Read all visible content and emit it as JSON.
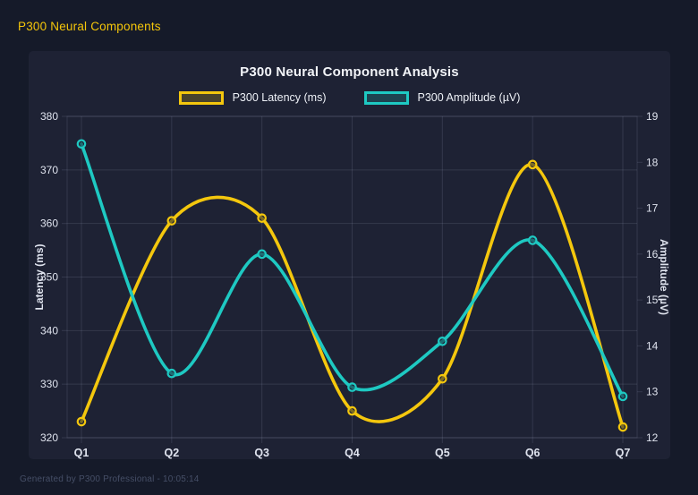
{
  "page": {
    "header_title": "P300 Neural Components",
    "footer_text": "Generated by P300 Professional - 10:05:14"
  },
  "colors": {
    "page_bg": "#151a29",
    "panel_bg": "#1e2234",
    "header_text": "#f5c60a",
    "title_text": "#f2f4f8",
    "tick_text": "#dfe3ee",
    "grid": "rgba(165,175,205,0.16)",
    "footer_text": "#454e66",
    "latency_series": "#f4c70d",
    "amplitude_series": "#1ec9c2"
  },
  "chart_data": {
    "type": "line",
    "title": "P300 Neural Component Analysis",
    "smooth": true,
    "grid": true,
    "legend_position": "top",
    "categories": [
      "Q1",
      "Q2",
      "Q3",
      "Q4",
      "Q5",
      "Q6",
      "Q7"
    ],
    "series": [
      {
        "name": "P300 Latency (ms)",
        "axis": "left",
        "color": "#f4c70d",
        "values": [
          323,
          360.5,
          361,
          325,
          331,
          371,
          322
        ]
      },
      {
        "name": "P300 Amplitude (µV)",
        "axis": "right",
        "color": "#1ec9c2",
        "values": [
          18.4,
          13.4,
          16.0,
          13.1,
          14.1,
          16.3,
          12.9
        ]
      }
    ],
    "left_axis": {
      "label": "Latency (ms)",
      "min": 320,
      "max": 380,
      "step": 10,
      "ticks": [
        380,
        370,
        360,
        350,
        340,
        330,
        320
      ]
    },
    "right_axis": {
      "label": "Amplitude (µV)",
      "min": 12,
      "max": 19,
      "step": 1,
      "ticks": [
        19,
        18,
        17,
        16,
        15,
        14,
        13,
        12
      ]
    }
  }
}
